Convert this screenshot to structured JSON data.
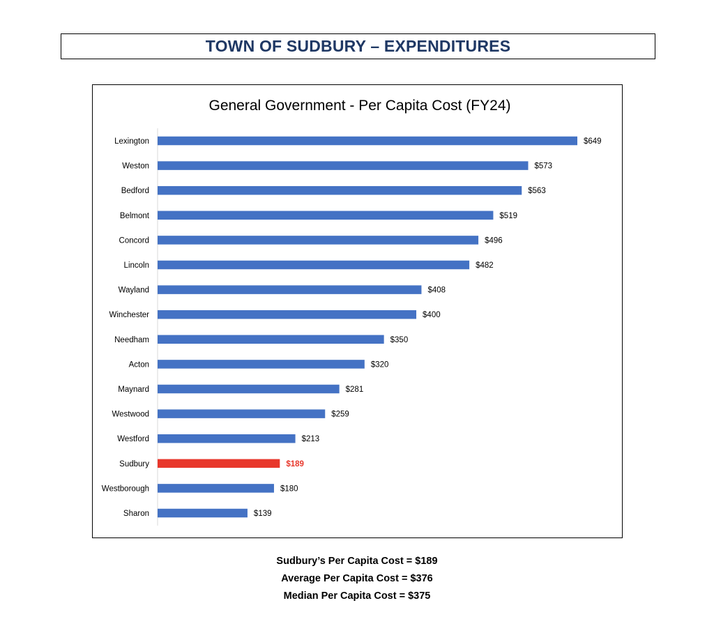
{
  "header": {
    "title": "TOWN OF SUDBURY – EXPENDITURES"
  },
  "colors": {
    "header_text": "#1f3864",
    "bar_default": "#4472c4",
    "bar_highlight": "#e8372b"
  },
  "chart_data": {
    "type": "bar",
    "orientation": "horizontal",
    "title": "General Government - Per Capita Cost (FY24)",
    "xlabel": "",
    "ylabel": "",
    "grid": false,
    "legend": "none",
    "xlim": [
      0,
      649
    ],
    "highlight": "Sudbury",
    "categories": [
      "Lexington",
      "Weston",
      "Bedford",
      "Belmont",
      "Concord",
      "Lincoln",
      "Wayland",
      "Winchester",
      "Needham",
      "Acton",
      "Maynard",
      "Westwood",
      "Westford",
      "Sudbury",
      "Westborough",
      "Sharon"
    ],
    "values": [
      649,
      573,
      563,
      519,
      496,
      482,
      408,
      400,
      350,
      320,
      281,
      259,
      213,
      189,
      180,
      139
    ],
    "value_labels": [
      "$649",
      "$573",
      "$563",
      "$519",
      "$496",
      "$482",
      "$408",
      "$400",
      "$350",
      "$320",
      "$281",
      "$259",
      "$213",
      "$189",
      "$180",
      "$139"
    ]
  },
  "summary": {
    "sudbury_line": "Sudbury’s Per Capita Cost = $189",
    "average_line": "Average Per Capita Cost = $376",
    "median_line": "Median Per Capita Cost = $375"
  }
}
